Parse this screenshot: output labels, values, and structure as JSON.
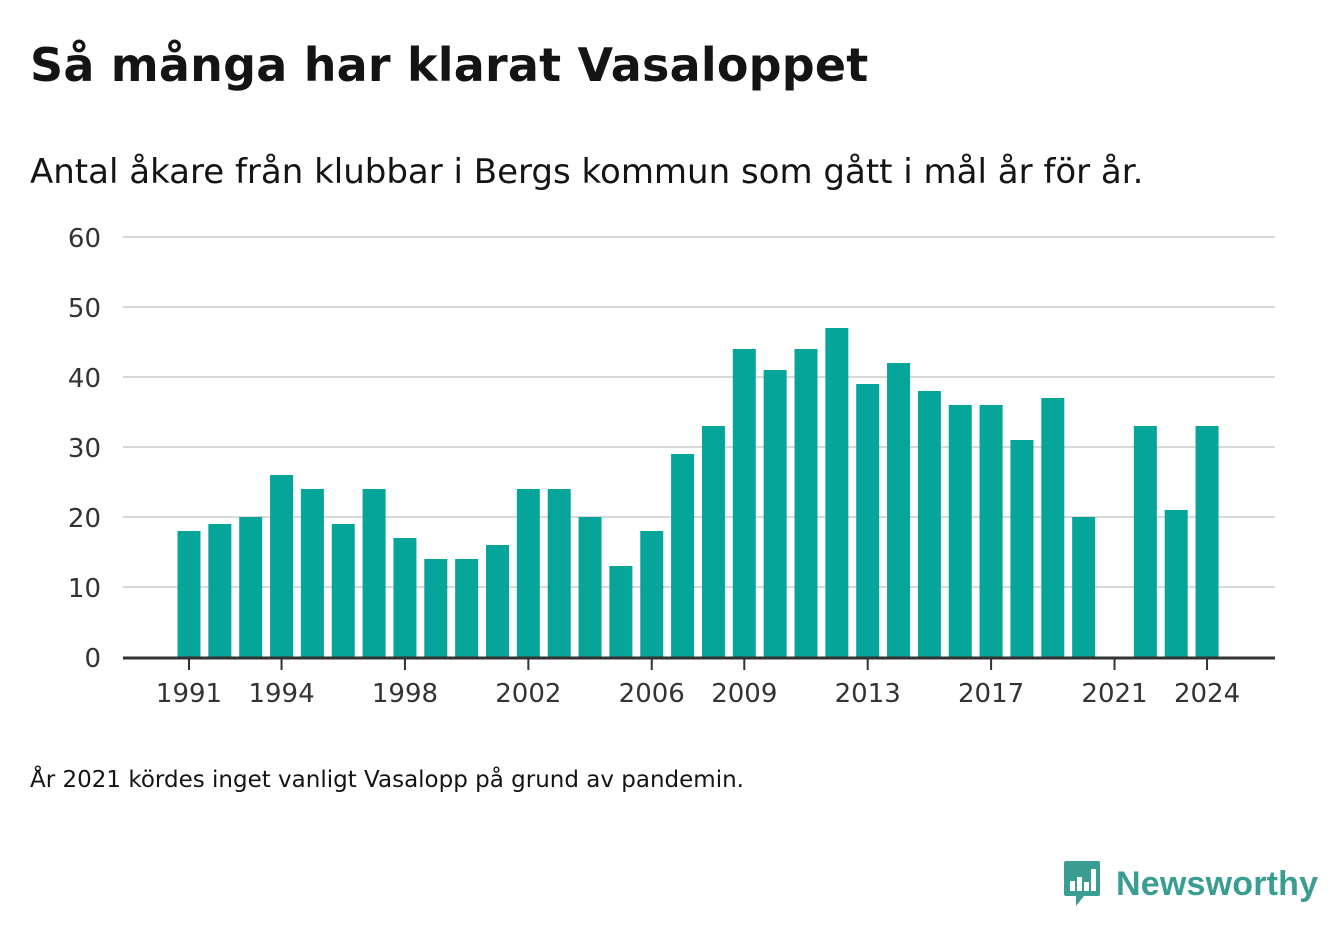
{
  "title": "Så många har klarat Vasaloppet",
  "subtitle": "Antal åkare från klubbar i Bergs kommun som gått i mål år för år.",
  "footnote": "År 2021 kördes inget vanligt Vasalopp på grund av pandemin.",
  "brand": {
    "name": "Newsworthy",
    "icon": "newsworthy-logo-icon",
    "color": "#3a9d91"
  },
  "colors": {
    "bar": "#06a59a",
    "grid": "#d9d9d9",
    "axis": "#333333",
    "text": "#333333"
  },
  "chart_data": {
    "type": "bar",
    "title": "Så många har klarat Vasaloppet",
    "subtitle": "Antal åkare från klubbar i Bergs kommun som gått i mål år för år.",
    "xlabel": "",
    "ylabel": "",
    "ylim": [
      0,
      60
    ],
    "yticks": [
      0,
      10,
      20,
      30,
      40,
      50,
      60
    ],
    "xtick_labels": [
      "1991",
      "1994",
      "1998",
      "2002",
      "2006",
      "2009",
      "2013",
      "2017",
      "2021",
      "2024"
    ],
    "grid": true,
    "legend": "none",
    "categories": [
      1991,
      1992,
      1993,
      1994,
      1995,
      1996,
      1997,
      1998,
      1999,
      2000,
      2001,
      2002,
      2003,
      2004,
      2005,
      2006,
      2007,
      2008,
      2009,
      2010,
      2011,
      2012,
      2013,
      2014,
      2015,
      2016,
      2017,
      2018,
      2019,
      2020,
      2021,
      2022,
      2023,
      2024
    ],
    "values": [
      18,
      19,
      20,
      26,
      24,
      19,
      24,
      17,
      14,
      14,
      16,
      24,
      24,
      20,
      13,
      18,
      29,
      33,
      44,
      41,
      44,
      47,
      39,
      42,
      38,
      36,
      36,
      31,
      37,
      20,
      null,
      33,
      21,
      33
    ]
  }
}
